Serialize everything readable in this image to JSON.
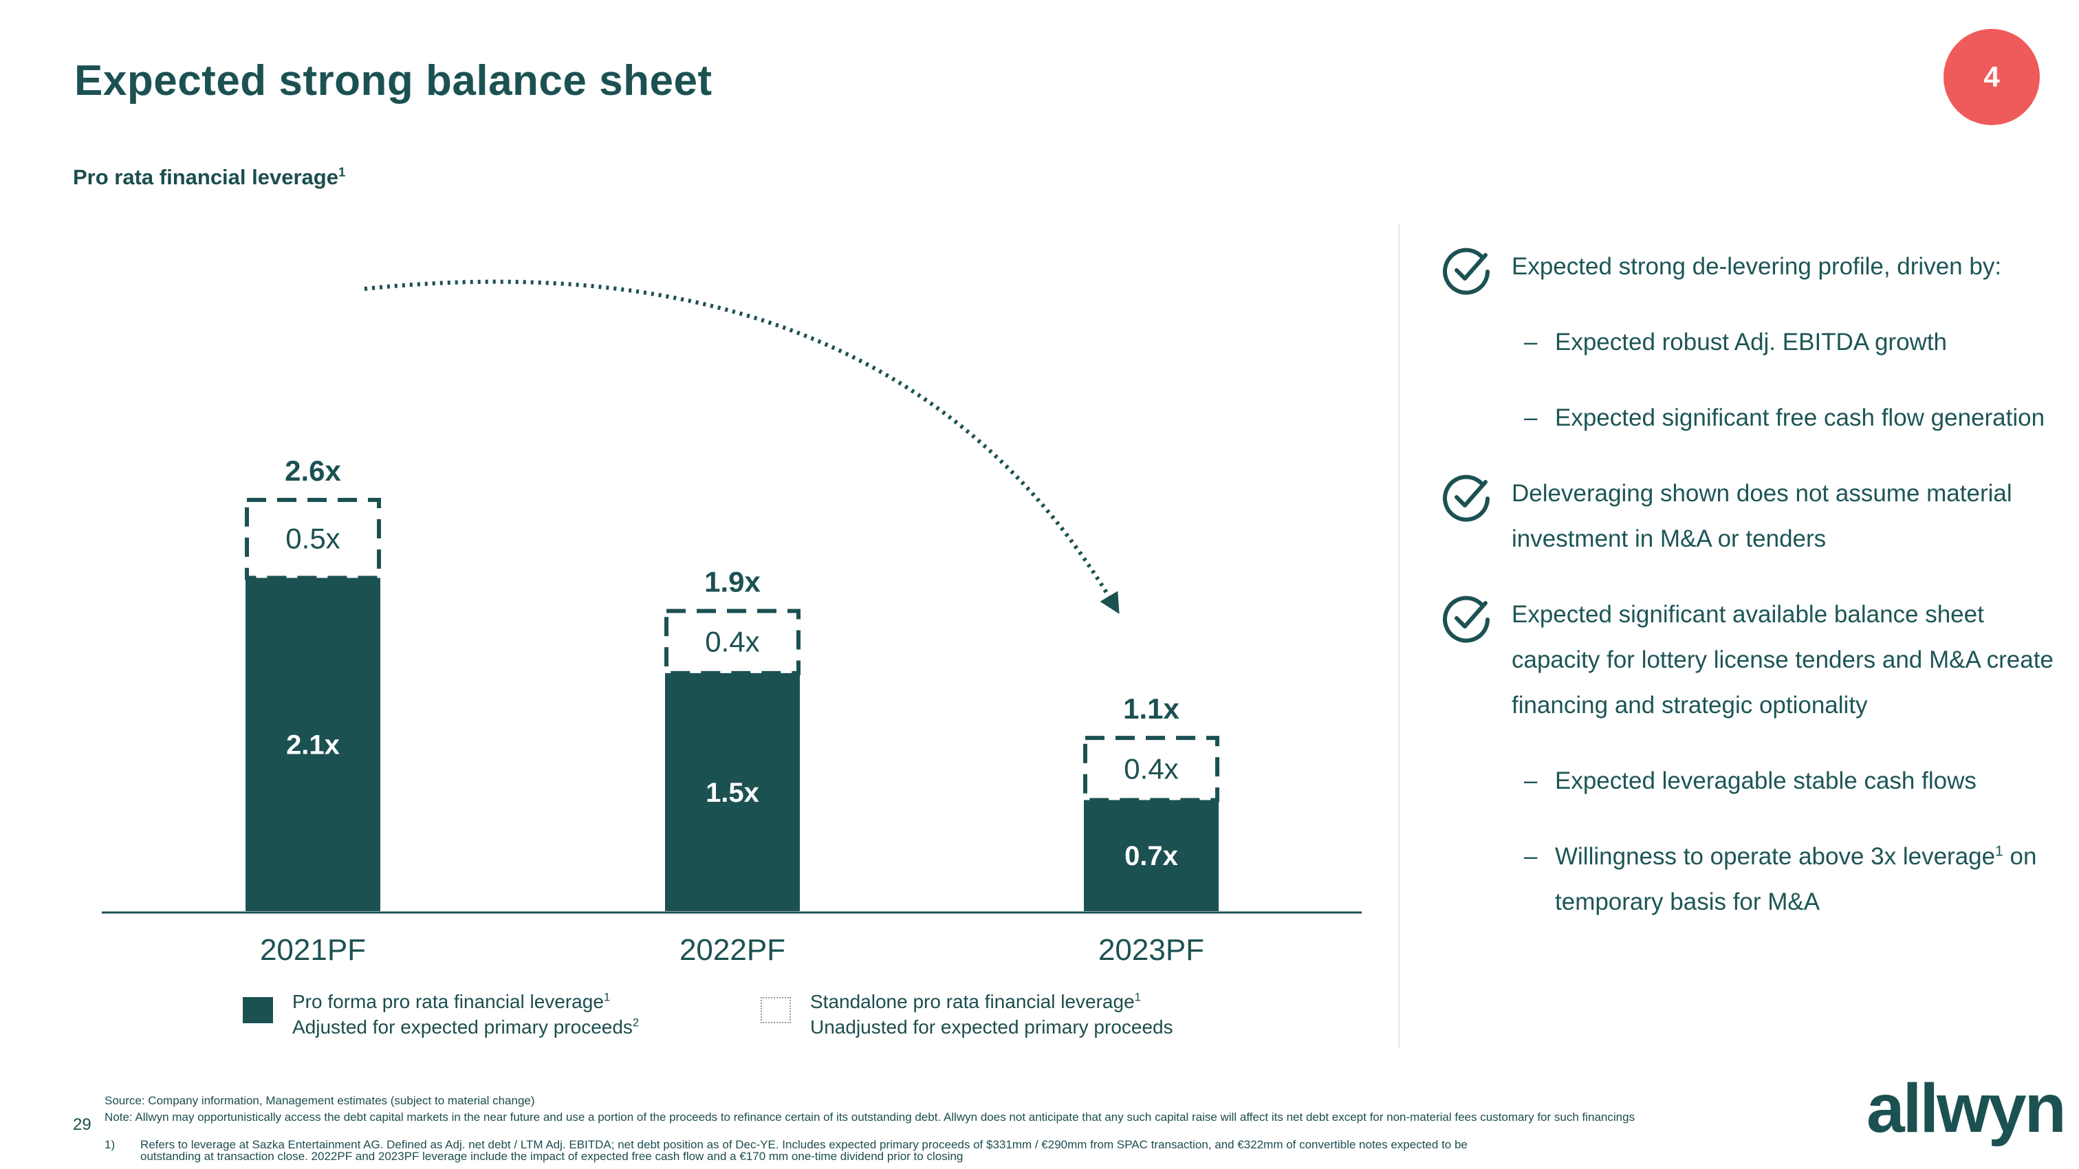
{
  "header": {
    "title": "Expected strong balance sheet",
    "badge": "4",
    "subtitle": "Pro rata financial leverage",
    "subtitle_sup": "1"
  },
  "colors": {
    "primary": "#1c5152",
    "badge": "#ef5b5b",
    "text": "#1d5555"
  },
  "chart_data": {
    "type": "bar",
    "stacked": true,
    "categories": [
      "2021PF",
      "2022PF",
      "2023PF"
    ],
    "series": [
      {
        "name": "Pro forma pro rata financial leverage adjusted for expected primary proceeds",
        "style": "solid",
        "values": [
          2.1,
          1.5,
          0.7
        ],
        "labels": [
          "2.1x",
          "1.5x",
          "0.7x"
        ]
      },
      {
        "name": "Standalone pro rata financial leverage unadjusted for expected primary proceeds",
        "style": "dashed",
        "values": [
          0.5,
          0.4,
          0.4
        ],
        "labels": [
          "0.5x",
          "0.4x",
          "0.4x"
        ]
      }
    ],
    "totals": [
      2.6,
      1.9,
      1.1
    ],
    "total_labels": [
      "2.6x",
      "1.9x",
      "1.1x"
    ],
    "title": "Pro rata financial leverage",
    "ylim": [
      0,
      2.6
    ],
    "annotation": "dotted arrow from 2021PF to 2023PF indicating de-levering"
  },
  "legend": {
    "item1_line1": "Pro forma pro rata financial leverage",
    "item1_sup1": "1",
    "item1_line2": "Adjusted for expected primary proceeds",
    "item1_sup2": "2",
    "item2_line1": "Standalone pro rata financial leverage",
    "item2_sup1": "1",
    "item2_line2": "Unadjusted for expected primary proceeds"
  },
  "panel": {
    "check1": "Expected strong de-levering profile, driven by:",
    "check1_sub1": "Expected robust Adj. EBITDA growth",
    "check1_sub2": "Expected significant free cash flow generation",
    "check2": "Deleveraging shown does not assume material investment in M&A or tenders",
    "check3": "Expected significant available balance sheet capacity for lottery license tenders and M&A create financing and strategic optionality",
    "check3_sub1": "Expected leveragable stable cash flows",
    "check3_sub2_a": "Willingness to operate above 3x leverage",
    "check3_sub2_sup": "1",
    "check3_sub2_b": " on temporary basis for M&A",
    "dash": "–"
  },
  "footer": {
    "source": "Source: Company information, Management estimates (subject to material change)",
    "note": "Note: Allwyn may opportunistically access the debt capital markets in the near future and use a portion of the proceeds to refinance certain of its outstanding debt. Allwyn does not anticipate that any such capital raise will affect its net debt except for non-material fees customary for such financings",
    "fn_marker": "1)",
    "fn1": "Refers to leverage at Sazka Entertainment AG. Defined as Adj. net debt / LTM Adj. EBITDA; net debt position as of Dec-YE. Includes expected primary proceeds of $331mm / €290mm from SPAC transaction, and €322mm of convertible notes expected to be outstanding at transaction close. 2022PF and 2023PF leverage include the impact of expected free cash flow and a €170 mm one-time dividend prior to closing",
    "page_number": "29",
    "logo": "allwyn"
  }
}
